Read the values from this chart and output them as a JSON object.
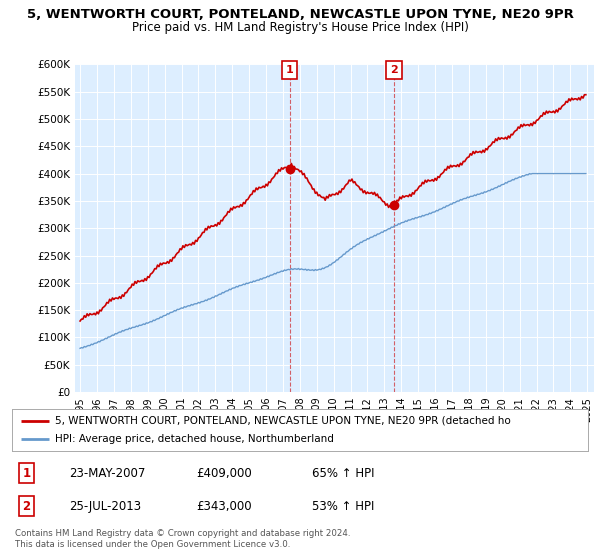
{
  "title": "5, WENTWORTH COURT, PONTELAND, NEWCASTLE UPON TYNE, NE20 9PR",
  "subtitle": "Price paid vs. HM Land Registry's House Price Index (HPI)",
  "legend_line1": "5, WENTWORTH COURT, PONTELAND, NEWCASTLE UPON TYNE, NE20 9PR (detached ho",
  "legend_line2": "HPI: Average price, detached house, Northumberland",
  "footer": "Contains HM Land Registry data © Crown copyright and database right 2024.\nThis data is licensed under the Open Government Licence v3.0.",
  "sale1_date": "23-MAY-2007",
  "sale1_price": "£409,000",
  "sale1_hpi": "65% ↑ HPI",
  "sale1_year": 2007.39,
  "sale1_value": 409000,
  "sale2_date": "25-JUL-2013",
  "sale2_price": "£343,000",
  "sale2_hpi": "53% ↑ HPI",
  "sale2_year": 2013.56,
  "sale2_value": 343000,
  "hpi_color": "#6699cc",
  "sale_color": "#cc0000",
  "background_color": "#ddeeff",
  "ylim": [
    0,
    600000
  ],
  "yticks": [
    0,
    50000,
    100000,
    150000,
    200000,
    250000,
    300000,
    350000,
    400000,
    450000,
    500000,
    550000,
    600000
  ]
}
